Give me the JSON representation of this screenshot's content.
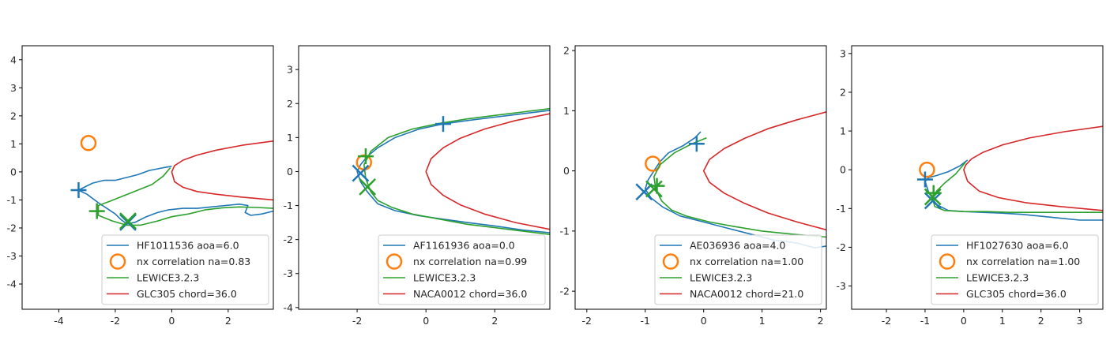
{
  "colors": {
    "blue": "#1f77b4",
    "orange": "#ff7f0e",
    "green": "#2ca02c",
    "red": "#d62728"
  },
  "chart_data": [
    {
      "type": "line",
      "title": "",
      "xlabel": "",
      "ylabel": "",
      "xlim": [
        -5.3,
        3.6
      ],
      "ylim": [
        -4.9,
        4.5
      ],
      "xticks": [
        "-4",
        "-2",
        "0",
        "2"
      ],
      "xtick_values": [
        -4,
        -2,
        0,
        2
      ],
      "yticks": [
        "-4",
        "-3",
        "-2",
        "-1",
        "0",
        "1",
        "2",
        "3",
        "4"
      ],
      "ytick_values": [
        -4,
        -3,
        -2,
        -1,
        0,
        1,
        2,
        3,
        4
      ],
      "legend_position": "lower-right",
      "series": [
        {
          "name": "HF1011536 aoa=6.0",
          "kind": "line",
          "color": "blue",
          "x": [
            0.0,
            -0.3,
            -0.8,
            -1.2,
            -1.6,
            -2.0,
            -2.4,
            -2.8,
            -3.1,
            -3.3,
            -3.0,
            -2.6,
            -2.3,
            -2.0,
            -1.8,
            -1.6,
            -1.3,
            -0.9,
            -0.5,
            -0.1,
            0.4,
            0.9,
            1.4,
            1.9,
            2.4,
            2.7,
            2.6,
            2.8,
            3.2,
            3.6
          ],
          "y": [
            0.2,
            0.15,
            0.05,
            -0.1,
            -0.2,
            -0.3,
            -0.3,
            -0.4,
            -0.55,
            -0.65,
            -0.8,
            -1.1,
            -1.3,
            -1.5,
            -1.7,
            -1.85,
            -1.8,
            -1.6,
            -1.45,
            -1.35,
            -1.3,
            -1.3,
            -1.25,
            -1.2,
            -1.15,
            -1.2,
            -1.45,
            -1.55,
            -1.5,
            -1.4
          ]
        },
        {
          "name": "nx correlation na=0.83",
          "kind": "marker-o",
          "color": "orange",
          "x": [
            -2.95
          ],
          "y": [
            1.03
          ]
        },
        {
          "name": "LEWICE3.2.3",
          "kind": "line",
          "color": "green",
          "x": [
            -0.05,
            -0.3,
            -0.7,
            -1.2,
            -1.7,
            -2.2,
            -2.6,
            -2.6,
            -2.1,
            -1.6,
            -1.1,
            -0.5,
            0.0,
            0.6,
            1.2,
            1.8,
            2.4,
            3.0,
            3.6
          ],
          "y": [
            0.15,
            -0.15,
            -0.45,
            -0.65,
            -0.85,
            -1.05,
            -1.2,
            -1.55,
            -1.75,
            -1.9,
            -1.9,
            -1.75,
            -1.6,
            -1.5,
            -1.35,
            -1.28,
            -1.25,
            -1.27,
            -1.3
          ]
        },
        {
          "name": "GLC305 chord=36.0",
          "kind": "line",
          "color": "red",
          "x": [
            3.6,
            2.5,
            1.6,
            0.9,
            0.4,
            0.1,
            0.0,
            0.1,
            0.4,
            0.9,
            1.6,
            2.5,
            3.6
          ],
          "y": [
            1.1,
            0.95,
            0.78,
            0.6,
            0.42,
            0.22,
            0.0,
            -0.35,
            -0.55,
            -0.7,
            -0.8,
            -0.9,
            -1.0
          ]
        },
        {
          "name": "",
          "kind": "marker-plus",
          "color": "blue",
          "x": [
            -3.3
          ],
          "y": [
            -0.65
          ]
        },
        {
          "name": "",
          "kind": "marker-x",
          "color": "blue",
          "x": [
            -1.55
          ],
          "y": [
            -1.8
          ]
        },
        {
          "name": "",
          "kind": "marker-plus",
          "color": "green",
          "x": [
            -2.65
          ],
          "y": [
            -1.4
          ]
        },
        {
          "name": "",
          "kind": "marker-x",
          "color": "green",
          "x": [
            -1.55
          ],
          "y": [
            -1.75
          ]
        }
      ]
    },
    {
      "type": "line",
      "title": "",
      "xlabel": "",
      "ylabel": "",
      "xlim": [
        -3.7,
        3.6
      ],
      "ylim": [
        -4.05,
        3.7
      ],
      "xticks": [
        "-2",
        "0",
        "2"
      ],
      "xtick_values": [
        -2,
        0,
        2
      ],
      "yticks": [
        "-4",
        "-3",
        "-2",
        "-1",
        "0",
        "1",
        "2",
        "3"
      ],
      "ytick_values": [
        -4,
        -3,
        -2,
        -1,
        0,
        1,
        2,
        3
      ],
      "legend_position": "lower-right",
      "series": [
        {
          "name": "AF1161936 aoa=0.0",
          "kind": "line",
          "color": "blue",
          "x": [
            3.6,
            2.8,
            2.0,
            1.2,
            0.5,
            -0.2,
            -0.9,
            -1.4,
            -1.7,
            -1.9,
            -2.0,
            -1.9,
            -1.7,
            -1.4,
            -0.9,
            -0.2,
            0.5,
            1.2,
            2.0,
            2.8,
            3.6
          ],
          "y": [
            1.8,
            1.7,
            1.6,
            1.5,
            1.4,
            1.25,
            1.0,
            0.7,
            0.45,
            0.2,
            0.0,
            -0.3,
            -0.6,
            -0.95,
            -1.15,
            -1.3,
            -1.4,
            -1.5,
            -1.6,
            -1.72,
            -1.8
          ]
        },
        {
          "name": "nx correlation na=0.99",
          "kind": "marker-o",
          "color": "orange",
          "x": [
            -1.8
          ],
          "y": [
            0.27
          ]
        },
        {
          "name": "LEWICE3.2.3",
          "kind": "line",
          "color": "green",
          "x": [
            3.6,
            2.8,
            2.0,
            1.2,
            0.4,
            -0.4,
            -1.1,
            -1.6,
            -1.8,
            -1.75,
            -1.6,
            -1.4,
            -1.0,
            -0.4,
            0.4,
            1.2,
            2.0,
            2.8,
            3.6
          ],
          "y": [
            1.85,
            1.75,
            1.65,
            1.55,
            1.42,
            1.25,
            1.0,
            0.6,
            0.2,
            -0.2,
            -0.6,
            -0.85,
            -1.05,
            -1.25,
            -1.4,
            -1.55,
            -1.65,
            -1.75,
            -1.85
          ]
        },
        {
          "name": "NACA0012 chord=36.0",
          "kind": "line",
          "color": "red",
          "x": [
            3.6,
            2.6,
            1.7,
            1.0,
            0.5,
            0.15,
            0.0,
            0.15,
            0.5,
            1.0,
            1.7,
            2.6,
            3.6
          ],
          "y": [
            1.7,
            1.5,
            1.25,
            0.98,
            0.7,
            0.38,
            0.0,
            -0.38,
            -0.7,
            -0.98,
            -1.25,
            -1.5,
            -1.7
          ]
        },
        {
          "name": "",
          "kind": "marker-plus",
          "color": "blue",
          "x": [
            0.5
          ],
          "y": [
            1.4
          ]
        },
        {
          "name": "",
          "kind": "marker-x",
          "color": "blue",
          "x": [
            -1.9
          ],
          "y": [
            -0.05
          ]
        },
        {
          "name": "",
          "kind": "marker-plus",
          "color": "green",
          "x": [
            -1.75
          ],
          "y": [
            0.45
          ]
        },
        {
          "name": "",
          "kind": "marker-x",
          "color": "green",
          "x": [
            -1.7
          ],
          "y": [
            -0.45
          ]
        }
      ]
    },
    {
      "type": "line",
      "title": "",
      "xlabel": "",
      "ylabel": "",
      "xlim": [
        -2.2,
        2.1
      ],
      "ylim": [
        -2.3,
        2.08
      ],
      "xticks": [
        "-2",
        "-1",
        "0",
        "1",
        "2"
      ],
      "xtick_values": [
        -2,
        -1,
        0,
        1,
        2
      ],
      "yticks": [
        "-2",
        "-1",
        "0",
        "1",
        "2"
      ],
      "ytick_values": [
        -2,
        -1,
        0,
        1,
        2
      ],
      "legend_position": "lower-right",
      "series": [
        {
          "name": "AE036936 aoa=4.0",
          "kind": "line",
          "color": "blue",
          "x": [
            -0.05,
            -0.15,
            -0.35,
            -0.6,
            -0.75,
            -0.85,
            -0.95,
            -1.0,
            -0.9,
            -0.7,
            -0.4,
            0.0,
            0.4,
            0.8,
            1.2,
            1.6,
            1.9,
            2.1
          ],
          "y": [
            0.65,
            0.55,
            0.42,
            0.3,
            0.15,
            0.0,
            -0.15,
            -0.3,
            -0.45,
            -0.6,
            -0.75,
            -0.85,
            -0.95,
            -1.05,
            -1.15,
            -1.2,
            -1.28,
            -1.25
          ]
        },
        {
          "name": "nx correlation na=1.00",
          "kind": "marker-o",
          "color": "orange",
          "x": [
            -0.87
          ],
          "y": [
            0.12
          ]
        },
        {
          "name": "LEWICE3.2.3",
          "kind": "line",
          "color": "green",
          "x": [
            0.05,
            -0.2,
            -0.5,
            -0.75,
            -0.85,
            -0.82,
            -0.72,
            -0.55,
            -0.3,
            0.1,
            0.5,
            1.0,
            1.5,
            2.1
          ],
          "y": [
            0.55,
            0.45,
            0.3,
            0.1,
            -0.1,
            -0.3,
            -0.5,
            -0.65,
            -0.75,
            -0.85,
            -0.92,
            -1.0,
            -1.05,
            -1.1
          ]
        },
        {
          "name": "NACA0012 chord=21.0",
          "kind": "line",
          "color": "red",
          "x": [
            2.1,
            1.6,
            1.1,
            0.7,
            0.35,
            0.1,
            0.0,
            0.1,
            0.35,
            0.7,
            1.1,
            1.6,
            2.1
          ],
          "y": [
            0.98,
            0.85,
            0.7,
            0.54,
            0.37,
            0.19,
            0.0,
            -0.19,
            -0.37,
            -0.54,
            -0.7,
            -0.85,
            -0.98
          ]
        },
        {
          "name": "",
          "kind": "marker-plus",
          "color": "blue",
          "x": [
            -0.12
          ],
          "y": [
            0.45
          ]
        },
        {
          "name": "",
          "kind": "marker-x",
          "color": "blue",
          "x": [
            -1.02
          ],
          "y": [
            -0.35
          ]
        },
        {
          "name": "",
          "kind": "marker-plus",
          "color": "green",
          "x": [
            -0.8
          ],
          "y": [
            -0.25
          ]
        },
        {
          "name": "",
          "kind": "marker-x",
          "color": "green",
          "x": [
            -0.85
          ],
          "y": [
            -0.3
          ]
        }
      ]
    },
    {
      "type": "line",
      "title": "",
      "xlabel": "",
      "ylabel": "",
      "xlim": [
        -2.9,
        3.6
      ],
      "ylim": [
        -3.6,
        3.2
      ],
      "xticks": [
        "-2",
        "-1",
        "0",
        "1",
        "2",
        "3"
      ],
      "xtick_values": [
        -2,
        -1,
        0,
        1,
        2,
        3
      ],
      "yticks": [
        "-3",
        "-2",
        "-1",
        "0",
        "1",
        "2",
        "3"
      ],
      "ytick_values": [
        -3,
        -2,
        -1,
        0,
        1,
        2,
        3
      ],
      "legend_position": "lower-right",
      "series": [
        {
          "name": "HF1027630 aoa=6.0",
          "kind": "line",
          "color": "blue",
          "x": [
            0.1,
            -0.1,
            -0.4,
            -0.7,
            -0.9,
            -1.0,
            -0.9,
            -0.7,
            -0.4,
            0.0,
            0.5,
            1.0,
            1.5,
            2.0,
            2.5,
            3.0,
            3.6
          ],
          "y": [
            0.25,
            0.1,
            -0.05,
            -0.15,
            -0.2,
            -0.3,
            -0.6,
            -0.9,
            -1.05,
            -1.08,
            -1.1,
            -1.12,
            -1.15,
            -1.2,
            -1.25,
            -1.3,
            -1.3
          ]
        },
        {
          "name": "nx correlation na=1.00",
          "kind": "marker-o",
          "color": "orange",
          "x": [
            -0.95
          ],
          "y": [
            0.0
          ]
        },
        {
          "name": "LEWICE3.2.3",
          "kind": "line",
          "color": "green",
          "x": [
            0.05,
            -0.2,
            -0.5,
            -0.7,
            -0.8,
            -0.75,
            -0.5,
            0.0,
            0.6,
            1.2,
            1.8,
            2.4,
            3.0,
            3.6
          ],
          "y": [
            0.2,
            -0.1,
            -0.35,
            -0.55,
            -0.75,
            -0.95,
            -1.05,
            -1.08,
            -1.08,
            -1.1,
            -1.1,
            -1.1,
            -1.1,
            -1.1
          ]
        },
        {
          "name": "GLC305 chord=36.0",
          "kind": "line",
          "color": "red",
          "x": [
            3.6,
            2.6,
            1.7,
            1.0,
            0.5,
            0.2,
            0.05,
            0.0,
            0.1,
            0.4,
            0.9,
            1.6,
            2.5,
            3.6
          ],
          "y": [
            1.12,
            0.98,
            0.82,
            0.64,
            0.45,
            0.28,
            0.12,
            0.0,
            -0.3,
            -0.55,
            -0.72,
            -0.85,
            -0.95,
            -1.05
          ]
        },
        {
          "name": "",
          "kind": "marker-plus",
          "color": "blue",
          "x": [
            -1.0
          ],
          "y": [
            -0.25
          ]
        },
        {
          "name": "",
          "kind": "marker-x",
          "color": "blue",
          "x": [
            -0.8
          ],
          "y": [
            -0.8
          ]
        },
        {
          "name": "",
          "kind": "marker-plus",
          "color": "green",
          "x": [
            -0.78
          ],
          "y": [
            -0.6
          ]
        },
        {
          "name": "",
          "kind": "marker-x",
          "color": "green",
          "x": [
            -0.8
          ],
          "y": [
            -0.7
          ]
        }
      ]
    }
  ]
}
